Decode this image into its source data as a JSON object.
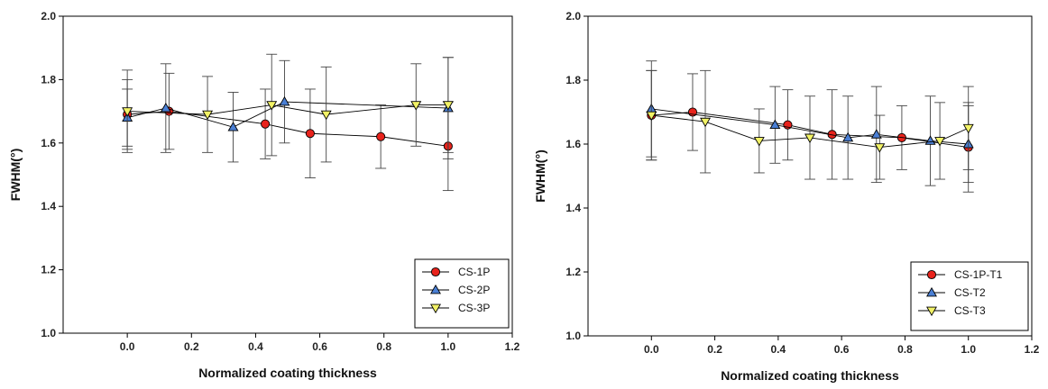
{
  "chart_data": [
    {
      "type": "line",
      "title": "",
      "xlabel": "Normalized coating thickness",
      "ylabel": "FWHM(°)",
      "xlim": [
        -0.2,
        1.2
      ],
      "ylim": [
        1.0,
        2.0
      ],
      "xticks": [
        "0.0",
        "0.2",
        "0.4",
        "0.6",
        "0.8",
        "1.0",
        "1.2"
      ],
      "xtick_values": [
        0,
        0.2,
        0.4,
        0.6,
        0.8,
        1.0,
        1.2
      ],
      "yticks": [
        "1.0",
        "1.2",
        "1.4",
        "1.6",
        "1.8",
        "2.0"
      ],
      "ytick_values": [
        1.0,
        1.2,
        1.4,
        1.6,
        1.8,
        2.0
      ],
      "grid": false,
      "legend_position": "bottom-right",
      "series": [
        {
          "name": "CS-1P",
          "marker": "circle",
          "color": "#e8231c",
          "x": [
            0.0,
            0.13,
            0.43,
            0.57,
            0.79,
            1.0
          ],
          "y": [
            1.69,
            1.7,
            1.66,
            1.63,
            1.62,
            1.59
          ],
          "err": [
            0.11,
            0.12,
            0.11,
            0.14,
            0.1,
            0.14
          ]
        },
        {
          "name": "CS-2P",
          "marker": "triangle-up",
          "color": "#4a7fd4",
          "x": [
            0.0,
            0.12,
            0.33,
            0.49,
            1.0
          ],
          "y": [
            1.68,
            1.71,
            1.65,
            1.73,
            1.71
          ],
          "err": [
            0.09,
            0.14,
            0.11,
            0.13,
            0.16
          ]
        },
        {
          "name": "CS-3P",
          "marker": "triangle-down",
          "color": "#f2f266",
          "x": [
            0.0,
            0.25,
            0.45,
            0.62,
            0.9,
            1.0
          ],
          "y": [
            1.7,
            1.69,
            1.72,
            1.69,
            1.72,
            1.72
          ],
          "err": [
            0.13,
            0.12,
            0.16,
            0.15,
            0.13,
            0.15
          ]
        }
      ]
    },
    {
      "type": "line",
      "title": "",
      "xlabel": "Normalized coating thickness",
      "ylabel": "FWHM(°)",
      "xlim": [
        -0.2,
        1.2
      ],
      "ylim": [
        1.0,
        2.0
      ],
      "xticks": [
        "0.0",
        "0.2",
        "0.4",
        "0.6",
        "0.8",
        "1.0",
        "1.2"
      ],
      "xtick_values": [
        0,
        0.2,
        0.4,
        0.6,
        0.8,
        1.0,
        1.2
      ],
      "yticks": [
        "1.0",
        "1.2",
        "1.4",
        "1.6",
        "1.8",
        "2.0"
      ],
      "ytick_values": [
        1.0,
        1.2,
        1.4,
        1.6,
        1.8,
        2.0
      ],
      "grid": false,
      "legend_position": "bottom-right",
      "series": [
        {
          "name": "CS-1P-T1",
          "marker": "circle",
          "color": "#e8231c",
          "x": [
            0.0,
            0.13,
            0.43,
            0.57,
            0.79,
            1.0
          ],
          "y": [
            1.69,
            1.7,
            1.66,
            1.63,
            1.62,
            1.59
          ],
          "err": [
            0.14,
            0.12,
            0.11,
            0.14,
            0.1,
            0.14
          ]
        },
        {
          "name": "CS-T2",
          "marker": "triangle-up",
          "color": "#4a7fd4",
          "x": [
            0.0,
            0.39,
            0.62,
            0.71,
            0.88,
            1.0
          ],
          "y": [
            1.71,
            1.66,
            1.62,
            1.63,
            1.61,
            1.6
          ],
          "err": [
            0.15,
            0.12,
            0.13,
            0.15,
            0.14,
            0.12
          ]
        },
        {
          "name": "CS-T3",
          "marker": "triangle-down",
          "color": "#f2f266",
          "x": [
            0.0,
            0.17,
            0.34,
            0.5,
            0.72,
            0.91,
            1.0
          ],
          "y": [
            1.69,
            1.67,
            1.61,
            1.62,
            1.59,
            1.61,
            1.65
          ],
          "err": [
            0.14,
            0.16,
            0.1,
            0.13,
            0.1,
            0.12,
            0.13
          ]
        }
      ]
    }
  ]
}
